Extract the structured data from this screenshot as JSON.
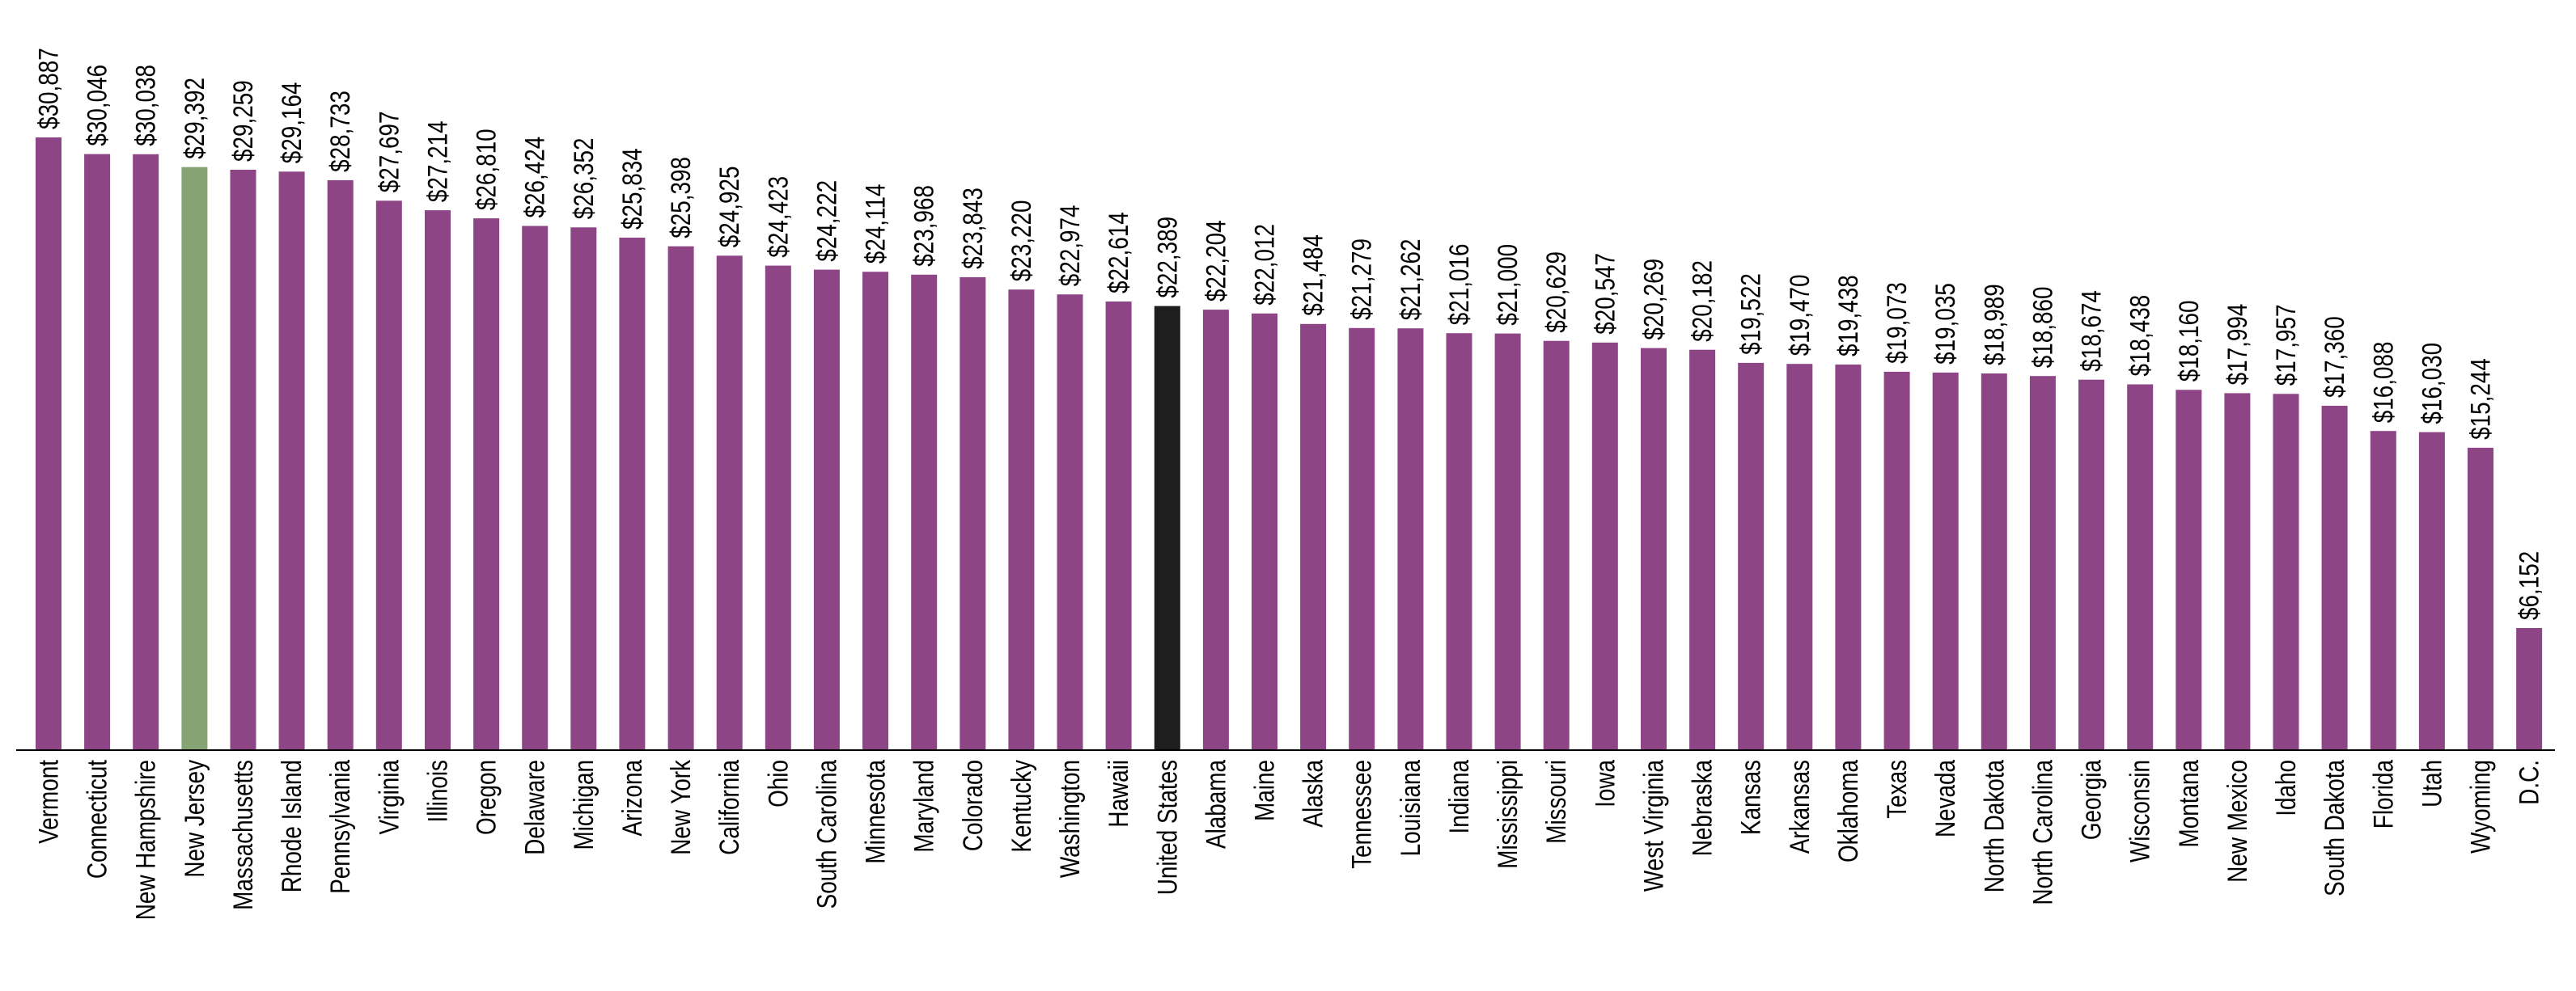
{
  "chart_data": {
    "type": "bar",
    "title": "",
    "xlabel": "",
    "ylabel": "",
    "ylim": [
      0,
      30887
    ],
    "grid": false,
    "legend": "none",
    "value_prefix": "$",
    "colors": {
      "default": "#8E4585",
      "highlight": "#86A373",
      "national": "#1E1E1E",
      "axis": "#000000"
    },
    "highlight_category": "New Jersey",
    "national_category": "United States",
    "categories": [
      "Vermont",
      "Connecticut",
      "New Hampshire",
      "New Jersey",
      "Massachusetts",
      "Rhode Island",
      "Pennsylvania",
      "Virginia",
      "Illinois",
      "Oregon",
      "Delaware",
      "Michigan",
      "Arizona",
      "New York",
      "California",
      "Ohio",
      "South Carolina",
      "Minnesota",
      "Maryland",
      "Colorado",
      "Kentucky",
      "Washington",
      "Hawaii",
      "United States",
      "Alabama",
      "Maine",
      "Alaska",
      "Tennessee",
      "Louisiana",
      "Indiana",
      "Mississippi",
      "Missouri",
      "Iowa",
      "West Virginia",
      "Nebraska",
      "Kansas",
      "Arkansas",
      "Oklahoma",
      "Texas",
      "Nevada",
      "North Dakota",
      "North Carolina",
      "Georgia",
      "Wisconsin",
      "Montana",
      "New Mexico",
      "Idaho",
      "South Dakota",
      "Florida",
      "Utah",
      "Wyoming",
      "D.C."
    ],
    "values": [
      30887,
      30046,
      30038,
      29392,
      29259,
      29164,
      28733,
      27697,
      27214,
      26810,
      26424,
      26352,
      25834,
      25398,
      24925,
      24423,
      24222,
      24114,
      23968,
      23843,
      23220,
      22974,
      22614,
      22389,
      22204,
      22012,
      21484,
      21279,
      21262,
      21016,
      21000,
      20629,
      20547,
      20269,
      20182,
      19522,
      19470,
      19438,
      19073,
      19035,
      18989,
      18860,
      18674,
      18438,
      18160,
      17994,
      17957,
      17360,
      16088,
      16030,
      15244,
      6152
    ],
    "value_labels": [
      "$30,887",
      "$30,046",
      "$30,038",
      "$29,392",
      "$29,259",
      "$29,164",
      "$28,733",
      "$27,697",
      "$27,214",
      "$26,810",
      "$26,424",
      "$26,352",
      "$25,834",
      "$25,398",
      "$24,925",
      "$24,423",
      "$24,222",
      "$24,114",
      "$23,968",
      "$23,843",
      "$23,220",
      "$22,974",
      "$22,614",
      "$22,389",
      "$22,204",
      "$22,012",
      "$21,484",
      "$21,279",
      "$21,262",
      "$21,016",
      "$21,000",
      "$20,629",
      "$20,547",
      "$20,269",
      "$20,182",
      "$19,522",
      "$19,470",
      "$19,438",
      "$19,073",
      "$19,035",
      "$18,989",
      "$18,860",
      "$18,674",
      "$18,438",
      "$18,160",
      "$17,994",
      "$17,957",
      "$17,360",
      "$16,088",
      "$16,030",
      "$15,244",
      "$6,152"
    ]
  }
}
